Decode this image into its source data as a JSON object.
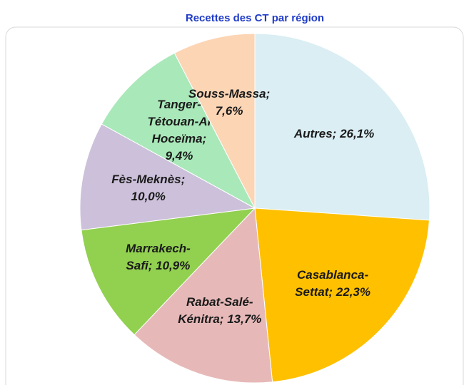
{
  "chart_data": {
    "type": "pie",
    "title": "Recettes des CT par région",
    "categories": [
      "Autres",
      "Casablanca-Settat",
      "Rabat-Salé-Kénitra",
      "Marrakech-Safi",
      "Fès-Meknès",
      "Tanger-Tétouan-Al Hoceïma",
      "Souss-Massa"
    ],
    "values": [
      26.1,
      22.3,
      13.7,
      10.9,
      10.0,
      9.4,
      7.6
    ],
    "value_labels": [
      "26,1%",
      "22,3%",
      "13,7%",
      "10,9%",
      "10,0%",
      "9,4%",
      "7,6%"
    ],
    "label_separator": ";",
    "colors": [
      "#daeef3",
      "#ffc000",
      "#e6b9b8",
      "#92d050",
      "#ccc0da",
      "#a9e8b9",
      "#fcd5b5"
    ]
  }
}
